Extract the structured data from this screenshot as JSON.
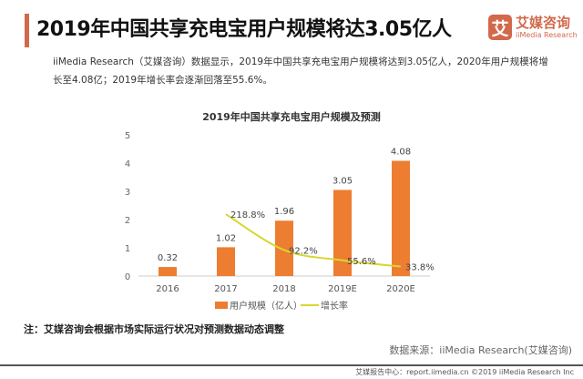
{
  "header": {
    "title": "2019年中国共享充电宝用户规模将达3.05亿人",
    "logo_mark": "艾",
    "logo_cn": "艾媒咨询",
    "logo_en": "iiMedia Research"
  },
  "description": "iiMedia Research（艾媒咨询）数据显示，2019年中国共享充电宝用户规模将达到3.05亿人，2020年用户规模将增长至4.08亿；2019年增长率会逐渐回落至55.6%。",
  "note": "注：艾媒咨询会根据市场实际运行状况对预测数据动态调整",
  "source": "数据来源：iiMedia Research(艾媒咨询)",
  "footer": "艾媒报告中心：report.iimedia.cn  ©2019  iiMedia Research Inc",
  "colors": {
    "accent": "#d2694a",
    "bar": "#ed7d31",
    "line": "#d9d630"
  },
  "chart_data": {
    "type": "bar+line",
    "title": "2019年中国共享充电宝用户规模及预测",
    "categories": [
      "2016",
      "2017",
      "2018",
      "2019E",
      "2020E"
    ],
    "series": [
      {
        "name": "用户规模（亿人）",
        "type": "bar",
        "axis": "left",
        "values": [
          0.32,
          1.02,
          1.96,
          3.05,
          4.08
        ],
        "labels": [
          "0.32",
          "1.02",
          "1.96",
          "3.05",
          "4.08"
        ]
      },
      {
        "name": "增长率",
        "type": "line",
        "axis": "right-hidden",
        "values": [
          null,
          218.8,
          92.2,
          55.6,
          33.8
        ],
        "labels": [
          "",
          "218.8%",
          "92.2%",
          "55.6%",
          "33.8%"
        ]
      }
    ],
    "ylim": [
      0,
      5
    ],
    "yticks": [
      "0",
      "1",
      "2",
      "3",
      "4",
      "5"
    ],
    "y2lim": [
      0,
      500
    ],
    "grid": false,
    "legend": "bottom"
  }
}
